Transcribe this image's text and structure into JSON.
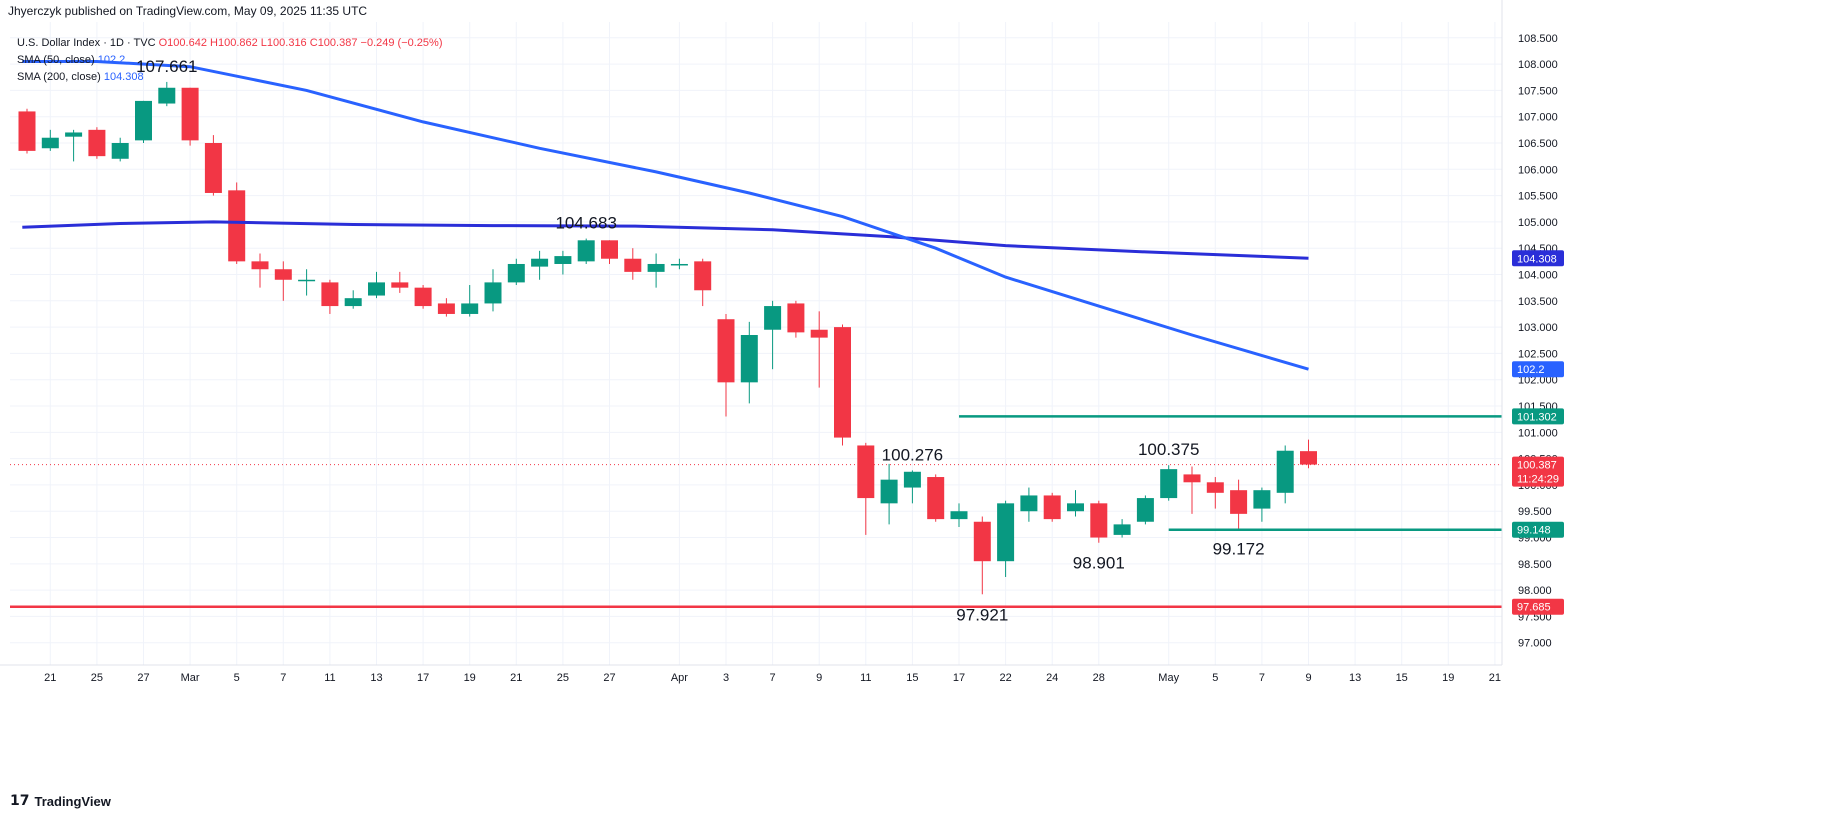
{
  "header": {
    "published": "Jhyerczyk published on TradingView.com, May 09, 2025 11:35 UTC"
  },
  "legend": {
    "symbol": "U.S. Dollar Index · 1D · TVC",
    "ohlc": {
      "o": "O100.642",
      "h": "H100.862",
      "l": "L100.316",
      "c": "C100.387",
      "chg": "−0.249 (−0.25%)"
    },
    "sma50_label": "SMA (50, close)",
    "sma50_value": "102.2",
    "sma200_label": "SMA (200, close)",
    "sma200_value": "104.308"
  },
  "footer": {
    "brand": "TradingView"
  },
  "colors": {
    "up": "#089981",
    "down": "#f23645",
    "sma50": "#2962ff",
    "sma200": "#2a2ed8",
    "support": "#f23645",
    "level": "#089981"
  },
  "chart_data": {
    "type": "candlestick",
    "ylim": [
      97.0,
      108.5
    ],
    "y_ticks": [
      "97.000",
      "97.500",
      "98.000",
      "98.500",
      "99.000",
      "99.500",
      "100.000",
      "100.500",
      "101.000",
      "101.500",
      "102.000",
      "102.500",
      "103.000",
      "103.500",
      "104.000",
      "104.500",
      "105.000",
      "105.500",
      "106.000",
      "106.500",
      "107.000",
      "107.500",
      "108.000",
      "108.500"
    ],
    "x_ticks": [
      {
        "label": "21",
        "i": 1
      },
      {
        "label": "25",
        "i": 3
      },
      {
        "label": "27",
        "i": 5
      },
      {
        "label": "Mar",
        "i": 7
      },
      {
        "label": "5",
        "i": 9
      },
      {
        "label": "7",
        "i": 11
      },
      {
        "label": "11",
        "i": 13
      },
      {
        "label": "13",
        "i": 15
      },
      {
        "label": "17",
        "i": 17
      },
      {
        "label": "19",
        "i": 19
      },
      {
        "label": "21",
        "i": 21
      },
      {
        "label": "25",
        "i": 23
      },
      {
        "label": "27",
        "i": 25
      },
      {
        "label": "Apr",
        "i": 28
      },
      {
        "label": "3",
        "i": 30
      },
      {
        "label": "7",
        "i": 32
      },
      {
        "label": "9",
        "i": 34
      },
      {
        "label": "11",
        "i": 36
      },
      {
        "label": "15",
        "i": 38
      },
      {
        "label": "17",
        "i": 40
      },
      {
        "label": "22",
        "i": 42
      },
      {
        "label": "24",
        "i": 44
      },
      {
        "label": "28",
        "i": 46
      },
      {
        "label": "May",
        "i": 49
      },
      {
        "label": "5",
        "i": 51
      },
      {
        "label": "7",
        "i": 53
      },
      {
        "label": "9",
        "i": 55
      },
      {
        "label": "13",
        "i": 57
      },
      {
        "label": "15",
        "i": 59
      },
      {
        "label": "19",
        "i": 61
      },
      {
        "label": "21",
        "i": 63
      }
    ],
    "candles": [
      {
        "o": 107.1,
        "h": 107.15,
        "l": 106.3,
        "c": 106.35
      },
      {
        "o": 106.4,
        "h": 106.75,
        "l": 106.35,
        "c": 106.6
      },
      {
        "o": 106.62,
        "h": 106.75,
        "l": 106.15,
        "c": 106.7
      },
      {
        "o": 106.75,
        "h": 106.8,
        "l": 106.2,
        "c": 106.25
      },
      {
        "o": 106.2,
        "h": 106.6,
        "l": 106.15,
        "c": 106.5
      },
      {
        "o": 106.55,
        "h": 107.3,
        "l": 106.5,
        "c": 107.3
      },
      {
        "o": 107.25,
        "h": 107.661,
        "l": 107.2,
        "c": 107.55
      },
      {
        "o": 107.55,
        "h": 107.55,
        "l": 106.45,
        "c": 106.55
      },
      {
        "o": 106.5,
        "h": 106.65,
        "l": 105.5,
        "c": 105.55
      },
      {
        "o": 105.6,
        "h": 105.75,
        "l": 104.2,
        "c": 104.25
      },
      {
        "o": 104.25,
        "h": 104.4,
        "l": 103.75,
        "c": 104.1
      },
      {
        "o": 104.1,
        "h": 104.25,
        "l": 103.5,
        "c": 103.9
      },
      {
        "o": 103.9,
        "h": 104.1,
        "l": 103.6,
        "c": 103.9
      },
      {
        "o": 103.85,
        "h": 103.9,
        "l": 103.25,
        "c": 103.4
      },
      {
        "o": 103.4,
        "h": 103.7,
        "l": 103.35,
        "c": 103.55
      },
      {
        "o": 103.6,
        "h": 104.05,
        "l": 103.55,
        "c": 103.85
      },
      {
        "o": 103.85,
        "h": 104.05,
        "l": 103.65,
        "c": 103.75
      },
      {
        "o": 103.75,
        "h": 103.8,
        "l": 103.35,
        "c": 103.4
      },
      {
        "o": 103.45,
        "h": 103.55,
        "l": 103.2,
        "c": 103.25
      },
      {
        "o": 103.25,
        "h": 103.8,
        "l": 103.2,
        "c": 103.45
      },
      {
        "o": 103.45,
        "h": 104.1,
        "l": 103.3,
        "c": 103.85
      },
      {
        "o": 103.85,
        "h": 104.3,
        "l": 103.8,
        "c": 104.2
      },
      {
        "o": 104.15,
        "h": 104.45,
        "l": 103.9,
        "c": 104.3
      },
      {
        "o": 104.2,
        "h": 104.45,
        "l": 104.0,
        "c": 104.35
      },
      {
        "o": 104.25,
        "h": 104.683,
        "l": 104.2,
        "c": 104.65
      },
      {
        "o": 104.65,
        "h": 104.65,
        "l": 104.2,
        "c": 104.3
      },
      {
        "o": 104.3,
        "h": 104.5,
        "l": 103.9,
        "c": 104.05
      },
      {
        "o": 104.05,
        "h": 104.4,
        "l": 103.75,
        "c": 104.2
      },
      {
        "o": 104.2,
        "h": 104.3,
        "l": 104.1,
        "c": 104.2
      },
      {
        "o": 104.25,
        "h": 104.3,
        "l": 103.4,
        "c": 103.7
      },
      {
        "o": 103.15,
        "h": 103.25,
        "l": 101.3,
        "c": 101.95
      },
      {
        "o": 101.95,
        "h": 103.1,
        "l": 101.55,
        "c": 102.85
      },
      {
        "o": 102.95,
        "h": 103.5,
        "l": 102.2,
        "c": 103.4
      },
      {
        "o": 103.45,
        "h": 103.5,
        "l": 102.8,
        "c": 102.9
      },
      {
        "o": 102.95,
        "h": 103.3,
        "l": 101.85,
        "c": 102.8
      },
      {
        "o": 103.0,
        "h": 103.05,
        "l": 100.75,
        "c": 100.9
      },
      {
        "o": 100.75,
        "h": 100.8,
        "l": 99.05,
        "c": 99.75
      },
      {
        "o": 99.65,
        "h": 100.4,
        "l": 99.25,
        "c": 100.1
      },
      {
        "o": 99.95,
        "h": 100.276,
        "l": 99.65,
        "c": 100.25
      },
      {
        "o": 100.15,
        "h": 100.2,
        "l": 99.3,
        "c": 99.35
      },
      {
        "o": 99.35,
        "h": 99.65,
        "l": 99.2,
        "c": 99.5
      },
      {
        "o": 99.3,
        "h": 99.4,
        "l": 97.921,
        "c": 98.55
      },
      {
        "o": 98.55,
        "h": 99.7,
        "l": 98.25,
        "c": 99.65
      },
      {
        "o": 99.5,
        "h": 99.95,
        "l": 99.3,
        "c": 99.8
      },
      {
        "o": 99.8,
        "h": 99.85,
        "l": 99.3,
        "c": 99.35
      },
      {
        "o": 99.5,
        "h": 99.9,
        "l": 99.4,
        "c": 99.65
      },
      {
        "o": 99.65,
        "h": 99.7,
        "l": 98.901,
        "c": 99.0
      },
      {
        "o": 99.05,
        "h": 99.35,
        "l": 99.0,
        "c": 99.25
      },
      {
        "o": 99.3,
        "h": 99.8,
        "l": 99.25,
        "c": 99.75
      },
      {
        "o": 99.75,
        "h": 100.375,
        "l": 99.7,
        "c": 100.3
      },
      {
        "o": 100.2,
        "h": 100.35,
        "l": 99.45,
        "c": 100.05
      },
      {
        "o": 100.05,
        "h": 100.15,
        "l": 99.55,
        "c": 99.85
      },
      {
        "o": 99.9,
        "h": 100.1,
        "l": 99.172,
        "c": 99.45
      },
      {
        "o": 99.55,
        "h": 99.95,
        "l": 99.3,
        "c": 99.9
      },
      {
        "o": 99.85,
        "h": 100.75,
        "l": 99.65,
        "c": 100.65
      },
      {
        "o": 100.642,
        "h": 100.862,
        "l": 100.316,
        "c": 100.387
      }
    ],
    "sma50": [
      [
        -0.2,
        108.05
      ],
      [
        3,
        108.05
      ],
      [
        7,
        107.95
      ],
      [
        12,
        107.5
      ],
      [
        17,
        106.9
      ],
      [
        22,
        106.4
      ],
      [
        27,
        105.95
      ],
      [
        31,
        105.55
      ],
      [
        35,
        105.1
      ],
      [
        39,
        104.5
      ],
      [
        42,
        103.95
      ],
      [
        46,
        103.4
      ],
      [
        50,
        102.85
      ],
      [
        55,
        102.2
      ]
    ],
    "sma200": [
      [
        -0.2,
        104.9
      ],
      [
        4,
        104.97
      ],
      [
        8,
        105.0
      ],
      [
        14,
        104.95
      ],
      [
        20,
        104.93
      ],
      [
        26,
        104.92
      ],
      [
        32,
        104.85
      ],
      [
        37,
        104.72
      ],
      [
        42,
        104.55
      ],
      [
        48,
        104.43
      ],
      [
        55,
        104.31
      ]
    ],
    "levels": [
      {
        "value": 101.302,
        "label": "101.302",
        "from": 40.0,
        "color": "#089981"
      },
      {
        "value": 99.148,
        "label": "99.148",
        "from": 49.0,
        "color": "#089981"
      },
      {
        "value": 97.685,
        "label": "97.685",
        "from": -1.0,
        "color": "#f23645"
      }
    ],
    "price_line": {
      "value": 100.387,
      "label": "100.387",
      "countdown": "11:24:29"
    },
    "axis_badges": [
      {
        "value": 104.308,
        "label": "104.308",
        "color": "#2a2ed8"
      },
      {
        "value": 102.2,
        "label": "102.2",
        "color": "#2962ff"
      }
    ],
    "annotations": [
      {
        "text": "107.661",
        "i": 6,
        "value": 107.661,
        "pos": "above"
      },
      {
        "text": "104.683",
        "i": 24,
        "value": 104.683,
        "pos": "above"
      },
      {
        "text": "100.276",
        "i": 38,
        "value": 100.276,
        "pos": "above"
      },
      {
        "text": "100.375",
        "i": 49,
        "value": 100.375,
        "pos": "above"
      },
      {
        "text": "98.901",
        "i": 46,
        "value": 98.901,
        "pos": "below"
      },
      {
        "text": "99.172",
        "i": 52,
        "value": 99.172,
        "pos": "below"
      },
      {
        "text": "97.921",
        "i": 41,
        "value": 97.921,
        "pos": "below"
      }
    ]
  }
}
